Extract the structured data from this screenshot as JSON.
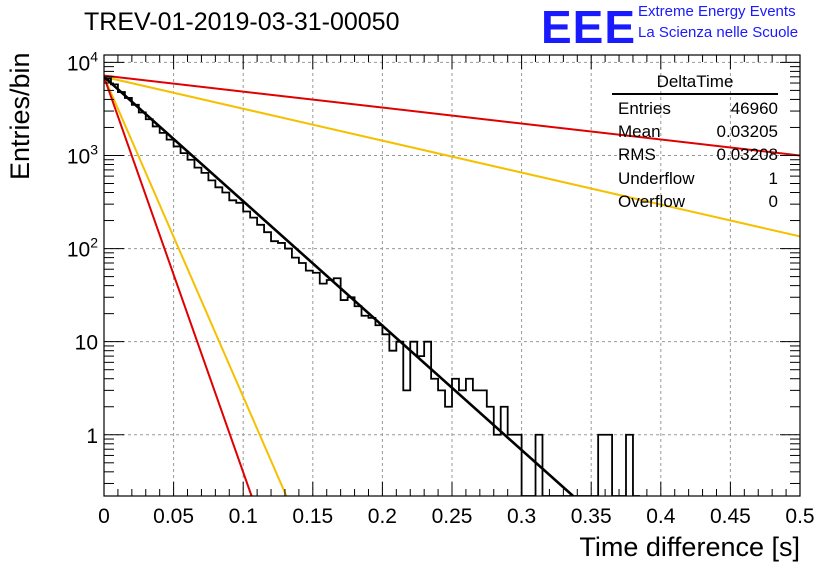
{
  "header": {
    "title": "TREV-01-2019-03-31-00050",
    "logo": "EEE",
    "org_line1": "Extreme Energy Events",
    "org_line2": "La Scienza nelle Scuole"
  },
  "stats_box": {
    "title": "DeltaTime",
    "rows": [
      {
        "label": "Entries",
        "value": "46960"
      },
      {
        "label": "Mean",
        "value": "0.03205"
      },
      {
        "label": "RMS",
        "value": "0.03208"
      },
      {
        "label": "Underflow",
        "value": "1"
      },
      {
        "label": "Overflow",
        "value": "0"
      }
    ]
  },
  "colors": {
    "histogram": "#000000",
    "fit": "#000000",
    "red_curves": "#e00000",
    "orange_curves": "#f5c000",
    "grid": "#999999"
  },
  "chart_data": {
    "type": "histogram",
    "title": "TREV-01-2019-03-31-00050",
    "xlabel": "Time difference [s]",
    "ylabel": "Entries/bin",
    "xlim": [
      0,
      0.5
    ],
    "ylim": [
      0.22,
      12000
    ],
    "yscale": "log",
    "grid": true,
    "x_ticks": [
      0,
      0.05,
      0.1,
      0.15,
      0.2,
      0.25,
      0.3,
      0.35,
      0.4,
      0.45,
      0.5
    ],
    "x_tick_labels": [
      "0",
      "0.05",
      "0.1",
      "0.15",
      "0.2",
      "0.25",
      "0.3",
      "0.35",
      "0.4",
      "0.45",
      "0.5"
    ],
    "y_ticks": [
      1,
      10,
      100,
      1000,
      10000
    ],
    "y_tick_labels": [
      "1",
      "10",
      "10^2",
      "10^3",
      "10^4"
    ],
    "bin_width": 0.005,
    "histogram_bins": [
      {
        "x0": 0.0,
        "value": 6700
      },
      {
        "x0": 0.005,
        "value": 5800
      },
      {
        "x0": 0.01,
        "value": 4800
      },
      {
        "x0": 0.015,
        "value": 4150
      },
      {
        "x0": 0.02,
        "value": 3500
      },
      {
        "x0": 0.025,
        "value": 2900
      },
      {
        "x0": 0.03,
        "value": 2450
      },
      {
        "x0": 0.035,
        "value": 2050
      },
      {
        "x0": 0.04,
        "value": 1750
      },
      {
        "x0": 0.045,
        "value": 1480
      },
      {
        "x0": 0.05,
        "value": 1250
      },
      {
        "x0": 0.055,
        "value": 1060
      },
      {
        "x0": 0.06,
        "value": 900
      },
      {
        "x0": 0.065,
        "value": 740
      },
      {
        "x0": 0.07,
        "value": 650
      },
      {
        "x0": 0.075,
        "value": 540
      },
      {
        "x0": 0.08,
        "value": 455
      },
      {
        "x0": 0.085,
        "value": 400
      },
      {
        "x0": 0.09,
        "value": 330
      },
      {
        "x0": 0.095,
        "value": 310
      },
      {
        "x0": 0.1,
        "value": 250
      },
      {
        "x0": 0.105,
        "value": 215
      },
      {
        "x0": 0.11,
        "value": 180
      },
      {
        "x0": 0.115,
        "value": 150
      },
      {
        "x0": 0.12,
        "value": 120
      },
      {
        "x0": 0.125,
        "value": 115
      },
      {
        "x0": 0.13,
        "value": 100
      },
      {
        "x0": 0.135,
        "value": 80
      },
      {
        "x0": 0.14,
        "value": 70
      },
      {
        "x0": 0.145,
        "value": 58
      },
      {
        "x0": 0.15,
        "value": 55
      },
      {
        "x0": 0.155,
        "value": 42
      },
      {
        "x0": 0.16,
        "value": 46
      },
      {
        "x0": 0.165,
        "value": 48
      },
      {
        "x0": 0.17,
        "value": 28
      },
      {
        "x0": 0.175,
        "value": 30
      },
      {
        "x0": 0.18,
        "value": 24
      },
      {
        "x0": 0.185,
        "value": 19
      },
      {
        "x0": 0.19,
        "value": 18
      },
      {
        "x0": 0.195,
        "value": 15
      },
      {
        "x0": 0.2,
        "value": 12
      },
      {
        "x0": 0.205,
        "value": 8
      },
      {
        "x0": 0.21,
        "value": 10
      },
      {
        "x0": 0.215,
        "value": 3
      },
      {
        "x0": 0.22,
        "value": 10
      },
      {
        "x0": 0.225,
        "value": 7
      },
      {
        "x0": 0.23,
        "value": 10
      },
      {
        "x0": 0.235,
        "value": 4
      },
      {
        "x0": 0.24,
        "value": 3
      },
      {
        "x0": 0.245,
        "value": 2
      },
      {
        "x0": 0.25,
        "value": 4
      },
      {
        "x0": 0.255,
        "value": 3
      },
      {
        "x0": 0.26,
        "value": 4
      },
      {
        "x0": 0.265,
        "value": 3
      },
      {
        "x0": 0.27,
        "value": 3
      },
      {
        "x0": 0.275,
        "value": 2
      },
      {
        "x0": 0.28,
        "value": 1
      },
      {
        "x0": 0.285,
        "value": 2
      },
      {
        "x0": 0.29,
        "value": 1
      },
      {
        "x0": 0.295,
        "value": 1
      },
      {
        "x0": 0.3,
        "value": 0
      },
      {
        "x0": 0.305,
        "value": 0
      },
      {
        "x0": 0.31,
        "value": 1
      },
      {
        "x0": 0.315,
        "value": 0
      },
      {
        "x0": 0.32,
        "value": 0
      },
      {
        "x0": 0.325,
        "value": 0
      },
      {
        "x0": 0.33,
        "value": 0
      },
      {
        "x0": 0.335,
        "value": 0
      },
      {
        "x0": 0.34,
        "value": 0
      },
      {
        "x0": 0.345,
        "value": 0
      },
      {
        "x0": 0.35,
        "value": 0
      },
      {
        "x0": 0.355,
        "value": 1
      },
      {
        "x0": 0.36,
        "value": 1
      },
      {
        "x0": 0.365,
        "value": 0
      },
      {
        "x0": 0.37,
        "value": 0
      },
      {
        "x0": 0.375,
        "value": 1
      },
      {
        "x0": 0.38,
        "value": 0
      }
    ],
    "fit_line": {
      "x": [
        0,
        0.337
      ],
      "y": [
        7000,
        0.22
      ]
    },
    "reference_curves": [
      {
        "color": "red",
        "x": [
          0,
          0.5
        ],
        "y": [
          7200,
          1000
        ]
      },
      {
        "color": "orange",
        "x": [
          0,
          0.5
        ],
        "y": [
          7000,
          135
        ]
      },
      {
        "color": "orange",
        "x": [
          0,
          0.131
        ],
        "y": [
          7000,
          0.22
        ]
      },
      {
        "color": "red",
        "x": [
          0,
          0.106
        ],
        "y": [
          7000,
          0.22
        ]
      }
    ]
  }
}
